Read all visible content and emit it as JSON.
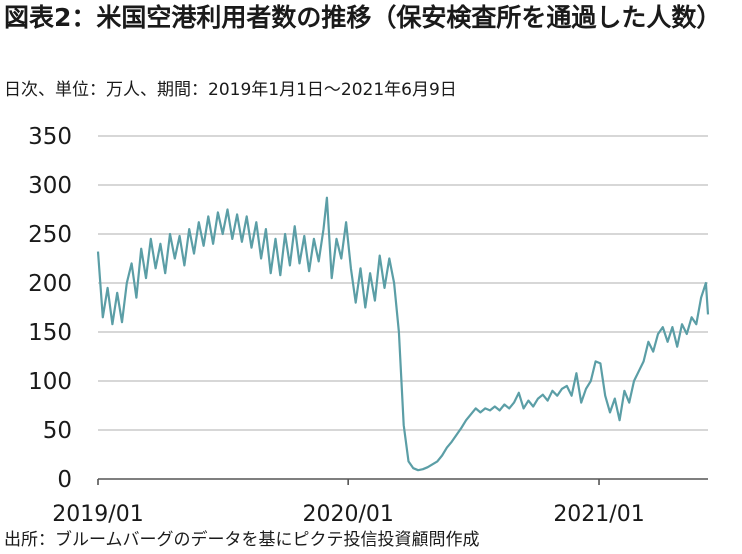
{
  "title": "図表2：米国空港利用者数の推移（保安検査所を通過した人数）",
  "subtitle": "日次、単位：万人、期間：2019年1月1日～2021年6月9日",
  "source": "出所：ブルームバーグのデータを基にピクテ投信投資顧問作成",
  "colors": {
    "line": "#5b9ea6",
    "grid": "#bfbfbf",
    "axis": "#555555"
  },
  "chart_data": {
    "type": "line",
    "title": "図表2：米国空港利用者数の推移（保安検査所を通過した人数）",
    "xlabel": "",
    "ylabel": "",
    "ylim": [
      0,
      350
    ],
    "yticks": [
      "0",
      "50",
      "100",
      "150",
      "200",
      "250",
      "300",
      "350"
    ],
    "xticks": [
      {
        "label": "2019/01",
        "date": "2019-01-01"
      },
      {
        "label": "2020/01",
        "date": "2020-01-01"
      },
      {
        "label": "2021/01",
        "date": "2021-01-01"
      }
    ],
    "xlim": [
      "2019-01-01",
      "2021-06-09"
    ],
    "grid": true,
    "legend": "none",
    "series": [
      {
        "name": "",
        "points": [
          [
            "2019-01-01",
            232
          ],
          [
            "2019-01-08",
            165
          ],
          [
            "2019-01-15",
            195
          ],
          [
            "2019-01-22",
            158
          ],
          [
            "2019-01-29",
            190
          ],
          [
            "2019-02-05",
            160
          ],
          [
            "2019-02-12",
            200
          ],
          [
            "2019-02-19",
            220
          ],
          [
            "2019-02-26",
            185
          ],
          [
            "2019-03-05",
            235
          ],
          [
            "2019-03-12",
            205
          ],
          [
            "2019-03-19",
            245
          ],
          [
            "2019-03-26",
            215
          ],
          [
            "2019-04-02",
            240
          ],
          [
            "2019-04-09",
            210
          ],
          [
            "2019-04-16",
            250
          ],
          [
            "2019-04-23",
            225
          ],
          [
            "2019-04-30",
            248
          ],
          [
            "2019-05-07",
            218
          ],
          [
            "2019-05-14",
            255
          ],
          [
            "2019-05-21",
            230
          ],
          [
            "2019-05-28",
            262
          ],
          [
            "2019-06-04",
            238
          ],
          [
            "2019-06-11",
            268
          ],
          [
            "2019-06-18",
            240
          ],
          [
            "2019-06-25",
            272
          ],
          [
            "2019-07-02",
            250
          ],
          [
            "2019-07-09",
            275
          ],
          [
            "2019-07-16",
            245
          ],
          [
            "2019-07-23",
            270
          ],
          [
            "2019-07-30",
            242
          ],
          [
            "2019-08-06",
            268
          ],
          [
            "2019-08-13",
            236
          ],
          [
            "2019-08-20",
            262
          ],
          [
            "2019-08-27",
            225
          ],
          [
            "2019-09-03",
            255
          ],
          [
            "2019-09-10",
            210
          ],
          [
            "2019-09-17",
            245
          ],
          [
            "2019-09-24",
            208
          ],
          [
            "2019-10-01",
            250
          ],
          [
            "2019-10-08",
            218
          ],
          [
            "2019-10-15",
            258
          ],
          [
            "2019-10-22",
            220
          ],
          [
            "2019-10-29",
            248
          ],
          [
            "2019-11-05",
            212
          ],
          [
            "2019-11-12",
            245
          ],
          [
            "2019-11-19",
            222
          ],
          [
            "2019-11-26",
            255
          ],
          [
            "2019-12-01",
            287
          ],
          [
            "2019-12-08",
            205
          ],
          [
            "2019-12-15",
            245
          ],
          [
            "2019-12-22",
            225
          ],
          [
            "2019-12-29",
            262
          ],
          [
            "2020-01-05",
            215
          ],
          [
            "2020-01-12",
            180
          ],
          [
            "2020-01-19",
            215
          ],
          [
            "2020-01-26",
            175
          ],
          [
            "2020-02-02",
            210
          ],
          [
            "2020-02-09",
            182
          ],
          [
            "2020-02-16",
            228
          ],
          [
            "2020-02-23",
            195
          ],
          [
            "2020-03-01",
            225
          ],
          [
            "2020-03-08",
            200
          ],
          [
            "2020-03-15",
            150
          ],
          [
            "2020-03-22",
            55
          ],
          [
            "2020-03-29",
            18
          ],
          [
            "2020-04-05",
            11
          ],
          [
            "2020-04-12",
            9
          ],
          [
            "2020-04-19",
            10
          ],
          [
            "2020-04-26",
            12
          ],
          [
            "2020-05-03",
            15
          ],
          [
            "2020-05-10",
            18
          ],
          [
            "2020-05-17",
            24
          ],
          [
            "2020-05-24",
            32
          ],
          [
            "2020-05-31",
            38
          ],
          [
            "2020-06-07",
            45
          ],
          [
            "2020-06-14",
            52
          ],
          [
            "2020-06-21",
            60
          ],
          [
            "2020-06-28",
            66
          ],
          [
            "2020-07-05",
            72
          ],
          [
            "2020-07-12",
            68
          ],
          [
            "2020-07-19",
            72
          ],
          [
            "2020-07-26",
            70
          ],
          [
            "2020-08-02",
            74
          ],
          [
            "2020-08-09",
            70
          ],
          [
            "2020-08-16",
            76
          ],
          [
            "2020-08-23",
            72
          ],
          [
            "2020-08-30",
            78
          ],
          [
            "2020-09-06",
            88
          ],
          [
            "2020-09-13",
            72
          ],
          [
            "2020-09-20",
            80
          ],
          [
            "2020-09-27",
            74
          ],
          [
            "2020-10-04",
            82
          ],
          [
            "2020-10-11",
            86
          ],
          [
            "2020-10-18",
            80
          ],
          [
            "2020-10-25",
            90
          ],
          [
            "2020-11-01",
            85
          ],
          [
            "2020-11-08",
            92
          ],
          [
            "2020-11-15",
            95
          ],
          [
            "2020-11-22",
            85
          ],
          [
            "2020-11-29",
            108
          ],
          [
            "2020-12-06",
            78
          ],
          [
            "2020-12-13",
            92
          ],
          [
            "2020-12-20",
            100
          ],
          [
            "2020-12-27",
            120
          ],
          [
            "2021-01-03",
            118
          ],
          [
            "2021-01-10",
            85
          ],
          [
            "2021-01-17",
            68
          ],
          [
            "2021-01-24",
            82
          ],
          [
            "2021-01-31",
            60
          ],
          [
            "2021-02-07",
            90
          ],
          [
            "2021-02-14",
            78
          ],
          [
            "2021-02-21",
            100
          ],
          [
            "2021-02-28",
            110
          ],
          [
            "2021-03-07",
            120
          ],
          [
            "2021-03-14",
            140
          ],
          [
            "2021-03-21",
            130
          ],
          [
            "2021-03-28",
            148
          ],
          [
            "2021-04-04",
            155
          ],
          [
            "2021-04-11",
            140
          ],
          [
            "2021-04-18",
            155
          ],
          [
            "2021-04-25",
            135
          ],
          [
            "2021-05-02",
            158
          ],
          [
            "2021-05-09",
            148
          ],
          [
            "2021-05-16",
            165
          ],
          [
            "2021-05-23",
            158
          ],
          [
            "2021-05-30",
            185
          ],
          [
            "2021-06-06",
            200
          ],
          [
            "2021-06-09",
            168
          ]
        ]
      }
    ]
  }
}
